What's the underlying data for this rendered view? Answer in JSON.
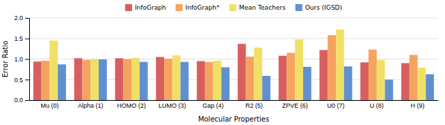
{
  "chart_data": {
    "type": "bar",
    "xlabel": "Molecular Properties",
    "ylabel": "Error Ratio",
    "categories": [
      "Mu (0)",
      "Alpha (1)",
      "HOMO (2)",
      "LUMO (3)",
      "Gap (4)",
      "R2 (5)",
      "ZPVE (6)",
      "U0 (7)",
      "U (8)",
      "H (9)"
    ],
    "series": [
      {
        "name": "InfoGraph",
        "color": "#d95f5f",
        "values": [
          0.94,
          1.02,
          1.02,
          1.05,
          0.95,
          1.37,
          1.08,
          1.22,
          0.92,
          0.9
        ]
      },
      {
        "name": "InfoGraph*",
        "color": "#f4a460",
        "values": [
          0.96,
          0.98,
          1.0,
          1.01,
          0.93,
          1.06,
          1.15,
          1.58,
          1.23,
          1.1
        ]
      },
      {
        "name": "Mean Teachers",
        "color": "#f0e068",
        "values": [
          1.45,
          1.0,
          1.03,
          1.09,
          0.96,
          1.28,
          1.48,
          1.72,
          0.98,
          0.79
        ]
      },
      {
        "name": "Ours (IGSD)",
        "color": "#6090d0",
        "values": [
          0.87,
          0.99,
          0.93,
          0.93,
          0.8,
          0.59,
          0.81,
          0.82,
          0.5,
          0.63
        ]
      }
    ],
    "ylim": [
      0.0,
      2.0
    ],
    "yticks": [
      {
        "value": 0,
        "label": "0.0"
      },
      0.5,
      {
        "value": 1,
        "label": "1.0"
      },
      1.5,
      {
        "value": 2,
        "label": "2.0"
      }
    ],
    "grid": true,
    "legend": "top"
  }
}
